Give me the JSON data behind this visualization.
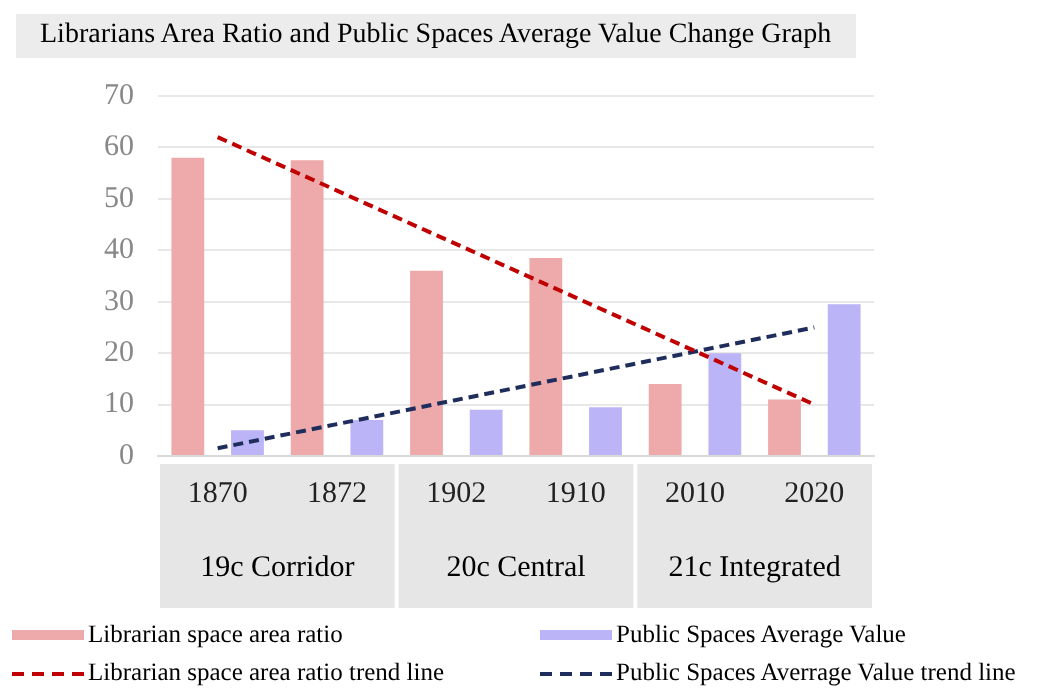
{
  "chart_data": {
    "type": "bar",
    "title": "Librarians Area Ratio and Public Spaces Average Value Change Graph",
    "categories": [
      "1870",
      "1872",
      "1902",
      "1910",
      "2010",
      "2020"
    ],
    "annotations": [
      "19c Corridor",
      "20c Central",
      "21c Integrated"
    ],
    "series": [
      {
        "name": "Librarian space area ratio",
        "color": "#eeaaaa",
        "values": [
          58,
          57.5,
          36,
          38.5,
          14,
          11
        ]
      },
      {
        "name": "Public Spaces Average Value",
        "color": "#bbb4f6",
        "values": [
          5,
          7,
          9,
          9.5,
          20,
          29.5
        ]
      },
      {
        "name": "Librarian space area ratio trend line",
        "type": "line",
        "color": "#c00000",
        "line_style": "dashed",
        "marker": "none",
        "values": [
          62,
          51.6,
          41.2,
          30.8,
          20.4,
          10
        ]
      },
      {
        "name": "Public Spaces Averrage Value trend line",
        "type": "line",
        "color": "#1f2d5c",
        "line_style": "dashed",
        "marker": "none",
        "values": [
          1.5,
          6.2,
          10.9,
          15.6,
          20.3,
          25
        ]
      }
    ],
    "ylim": [
      0,
      70
    ],
    "yticks": [
      0,
      10,
      20,
      30,
      40,
      50,
      60,
      70
    ],
    "grid": "y",
    "legend": "bottom"
  }
}
